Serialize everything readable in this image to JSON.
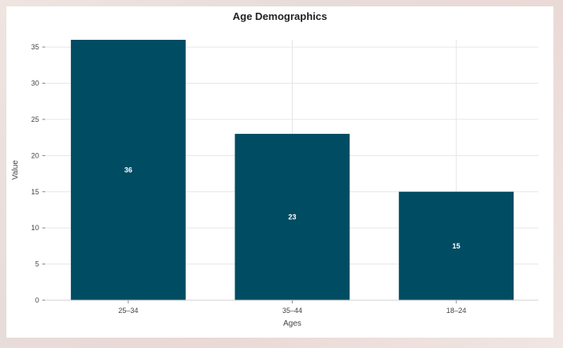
{
  "chart_data": {
    "type": "bar",
    "title": "Age Demographics",
    "xlabel": "Ages",
    "ylabel": "Value",
    "categories": [
      "25–34",
      "35–44",
      "18–24"
    ],
    "values": [
      36,
      23,
      15
    ],
    "ylim": [
      0,
      36
    ],
    "yticks": [
      0,
      5,
      10,
      15,
      20,
      25,
      30,
      35
    ],
    "grid": true,
    "bar_color": "#004c63",
    "data_labels": [
      "36",
      "23",
      "15"
    ]
  }
}
